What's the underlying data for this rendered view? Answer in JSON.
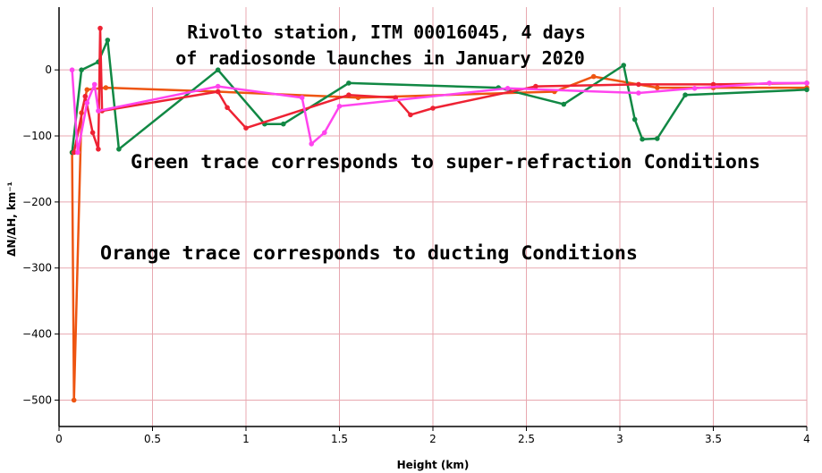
{
  "chart_data": {
    "type": "line",
    "title_lines": [
      "Rivolto station, ITM 00016045, 4 days",
      "of radiosonde launches in January 2020"
    ],
    "annotations": [
      "Green trace corresponds to super-refraction Conditions",
      "Orange trace corresponds to ducting Conditions"
    ],
    "xlabel": "Height (km)",
    "ylabel": "ΔN/ΔH, km⁻¹",
    "xlim": [
      0,
      4
    ],
    "ylim": [
      -540,
      95
    ],
    "x_ticks": [
      0,
      0.5,
      1,
      1.5,
      2,
      2.5,
      3,
      3.5,
      4
    ],
    "x_tick_labels": [
      "0",
      "0.5",
      "1",
      "1.5",
      "2",
      "2.5",
      "3",
      "3.5",
      "4"
    ],
    "y_ticks": [
      0,
      -100,
      -200,
      -300,
      -400,
      -500
    ],
    "y_tick_labels": [
      "0",
      "−100",
      "−200",
      "−300",
      "−400",
      "−500"
    ],
    "grid": true,
    "grid_color": "#e8a8b0",
    "series": [
      {
        "color": "#ee5511",
        "points": [
          [
            0.07,
            -125
          ],
          [
            0.08,
            -500
          ],
          [
            0.12,
            -65
          ],
          [
            0.15,
            -30
          ],
          [
            0.25,
            -27
          ],
          [
            0.85,
            -33
          ],
          [
            1.6,
            -42
          ],
          [
            2.65,
            -33
          ],
          [
            2.86,
            -10
          ],
          [
            3.2,
            -27
          ],
          [
            3.5,
            -27
          ],
          [
            4.0,
            -27
          ]
        ]
      },
      {
        "color": "#118844",
        "points": [
          [
            0.07,
            -125
          ],
          [
            0.12,
            0
          ],
          [
            0.21,
            12
          ],
          [
            0.26,
            45
          ],
          [
            0.32,
            -120
          ],
          [
            0.85,
            0
          ],
          [
            1.1,
            -82
          ],
          [
            1.2,
            -82
          ],
          [
            1.55,
            -20
          ],
          [
            2.35,
            -27
          ],
          [
            2.7,
            -52
          ],
          [
            3.02,
            7
          ],
          [
            3.08,
            -75
          ],
          [
            3.12,
            -105
          ],
          [
            3.2,
            -104
          ],
          [
            3.35,
            -38
          ],
          [
            4.0,
            -30
          ]
        ]
      },
      {
        "color": "#ee2233",
        "points": [
          [
            0.08,
            -125
          ],
          [
            0.14,
            -40
          ],
          [
            0.18,
            -95
          ],
          [
            0.21,
            -120
          ],
          [
            0.22,
            63
          ],
          [
            0.23,
            -62
          ],
          [
            0.85,
            -33
          ],
          [
            0.9,
            -57
          ],
          [
            1.0,
            -88
          ],
          [
            1.55,
            -38
          ],
          [
            1.8,
            -42
          ],
          [
            1.88,
            -68
          ],
          [
            2.0,
            -58
          ],
          [
            2.55,
            -25
          ],
          [
            3.1,
            -22
          ],
          [
            3.5,
            -22
          ],
          [
            4.0,
            -20
          ]
        ]
      },
      {
        "color": "#ff44ee",
        "points": [
          [
            0.07,
            0
          ],
          [
            0.1,
            -125
          ],
          [
            0.15,
            -50
          ],
          [
            0.19,
            -22
          ],
          [
            0.21,
            -62
          ],
          [
            0.85,
            -25
          ],
          [
            1.3,
            -42
          ],
          [
            1.35,
            -112
          ],
          [
            1.42,
            -95
          ],
          [
            1.5,
            -55
          ],
          [
            2.4,
            -28
          ],
          [
            3.1,
            -35
          ],
          [
            3.4,
            -28
          ],
          [
            3.8,
            -20
          ],
          [
            4.0,
            -20
          ]
        ]
      }
    ]
  }
}
